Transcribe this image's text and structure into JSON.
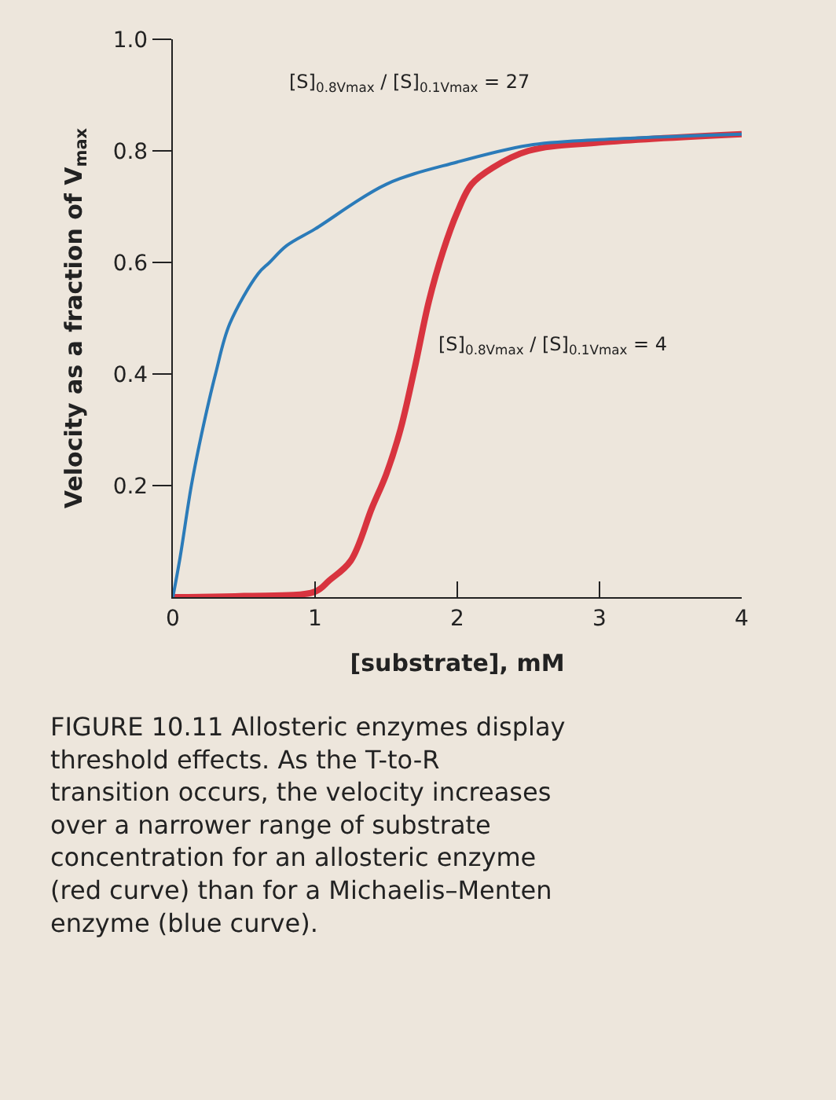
{
  "chart_data": {
    "type": "line",
    "xlabel": "[substrate], mM",
    "ylabel": "Velocity as a fraction of V$_{max}$",
    "annotations": [
      "[S]$_{0.8Vmax}$ / [S]$_{0.1Vmax}$ = 27",
      "[S]$_{0.8Vmax}$ / [S]$_{0.1Vmax}$ = 4",
      "FIGURE 10.11 Allosteric enzymes display threshold effects. As the T-to-R transition occurs, the velocity increases over a narrower range of substrate concentration for an allosteric enzyme (red curve) than for a Michaelis–Menten enzyme (blue curve)."
    ],
    "series": [
      {
        "color": "#2b7bb9",
        "x": [
          0,
          0.05,
          0.13,
          0.2,
          0.3,
          0.4,
          0.6,
          0.68,
          0.8,
          1,
          1.5,
          2,
          2.5,
          3,
          4
        ],
        "values": [
          0,
          0.07,
          0.2,
          0.29,
          0.4,
          0.49,
          0.58,
          0.6,
          0.63,
          0.66,
          0.74,
          0.78,
          0.81,
          0.82,
          0.83
        ]
      },
      {
        "color": "#d8343f",
        "x": [
          0,
          0.5,
          1,
          1.1,
          1.25,
          1.4,
          1.5,
          1.6,
          1.7,
          1.8,
          1.9,
          2,
          2.1,
          2.25,
          2.5,
          3,
          4
        ],
        "values": [
          0,
          0.002,
          0.01,
          0.03,
          0.065,
          0.16,
          0.22,
          0.3,
          0.41,
          0.53,
          0.62,
          0.69,
          0.74,
          0.77,
          0.8,
          0.815,
          0.83
        ]
      }
    ],
    "xlim": [
      0,
      4
    ],
    "ylim": [
      0,
      1
    ],
    "xticks": [
      0,
      1,
      2,
      3,
      4
    ],
    "yticks": [
      {
        "value": 0.2,
        "label": "0.2"
      },
      {
        "value": 0.4,
        "label": "0.4"
      },
      {
        "value": 0.6,
        "label": "0.6"
      },
      {
        "value": 0.8,
        "label": "0.8"
      },
      {
        "value": 1,
        "label": "1.0"
      }
    ],
    "grid": false
  }
}
